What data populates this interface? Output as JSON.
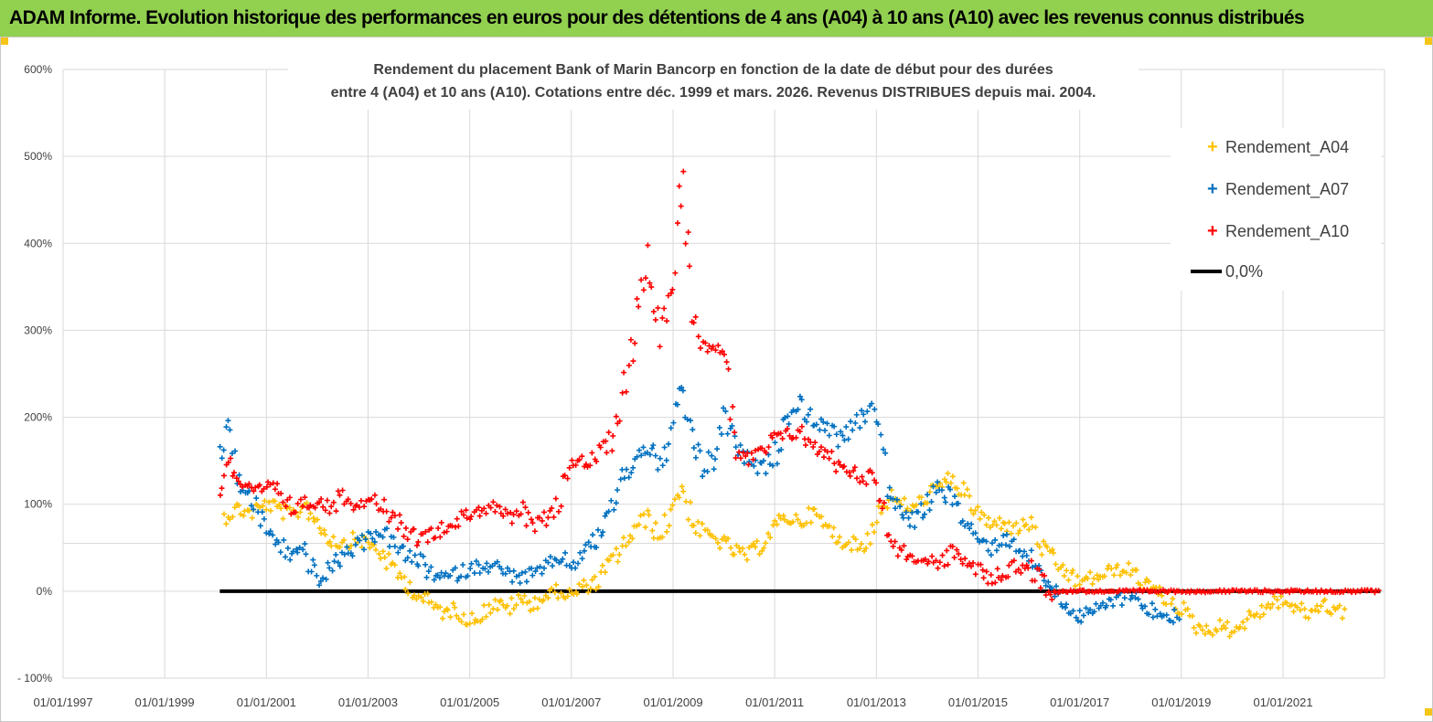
{
  "banner": {
    "title": "ADAM Informe. Evolution historique des performances en euros pour des détentions de 4 ans (A04) à 10 ans (A10) avec les revenus connus distribués",
    "background": "#92d050"
  },
  "chart_data": {
    "type": "scatter",
    "title_line1": "Rendement du placement Bank of Marin Bancorp en fonction de la date de début pour des durées",
    "title_line2": "entre 4 (A04) et 10 ans (A10).  Cotations entre déc. 1999 et mars. 2026. Revenus DISTRIBUES depuis mai. 2004.",
    "x_axis": {
      "type": "date",
      "range": [
        "1997-01-01",
        "2022-12-31"
      ],
      "tick_labels": [
        "01/01/1997",
        "01/01/1999",
        "01/01/2001",
        "01/01/2003",
        "01/01/2005",
        "01/01/2007",
        "01/01/2009",
        "01/01/2011",
        "01/01/2013",
        "01/01/2015",
        "01/01/2017",
        "01/01/2019",
        "01/01/2021"
      ]
    },
    "y_axis": {
      "range": [
        -100,
        600
      ],
      "tick_values": [
        -100,
        0,
        100,
        200,
        300,
        400,
        500,
        600
      ],
      "tick_labels": [
        "- 100%",
        "0%",
        "100%",
        "200%",
        "300%",
        "400%",
        "500%",
        "600%"
      ],
      "extra_gridline": 55
    },
    "grid": true,
    "legend_position": "top-right",
    "series": [
      {
        "name": "Rendement_A04",
        "color": "#ffc000",
        "marker": "plus",
        "points": [
          [
            "2000-03-01",
            85
          ],
          [
            "2000-06-01",
            95
          ],
          [
            "2000-09-01",
            90
          ],
          [
            "2001-01-01",
            100
          ],
          [
            "2001-04-01",
            95
          ],
          [
            "2001-07-01",
            85
          ],
          [
            "2001-10-01",
            100
          ],
          [
            "2002-01-01",
            80
          ],
          [
            "2002-04-01",
            60
          ],
          [
            "2002-07-01",
            55
          ],
          [
            "2002-10-01",
            60
          ],
          [
            "2003-01-01",
            55
          ],
          [
            "2003-04-01",
            45
          ],
          [
            "2003-07-01",
            25
          ],
          [
            "2003-10-01",
            10
          ],
          [
            "2004-01-01",
            -5
          ],
          [
            "2004-04-01",
            -15
          ],
          [
            "2004-07-01",
            -25
          ],
          [
            "2004-10-01",
            -20
          ],
          [
            "2005-01-01",
            -35
          ],
          [
            "2005-04-01",
            -25
          ],
          [
            "2005-07-01",
            -15
          ],
          [
            "2005-10-01",
            -20
          ],
          [
            "2006-01-01",
            -10
          ],
          [
            "2006-04-01",
            -15
          ],
          [
            "2006-07-01",
            -5
          ],
          [
            "2006-10-01",
            0
          ],
          [
            "2007-01-01",
            -5
          ],
          [
            "2007-04-01",
            5
          ],
          [
            "2007-07-01",
            10
          ],
          [
            "2007-10-01",
            30
          ],
          [
            "2008-01-01",
            50
          ],
          [
            "2008-04-01",
            70
          ],
          [
            "2008-07-01",
            85
          ],
          [
            "2008-10-01",
            60
          ],
          [
            "2009-01-01",
            100
          ],
          [
            "2009-03-01",
            120
          ],
          [
            "2009-06-01",
            75
          ],
          [
            "2009-09-01",
            65
          ],
          [
            "2010-01-01",
            55
          ],
          [
            "2010-04-01",
            45
          ],
          [
            "2010-07-01",
            40
          ],
          [
            "2010-10-01",
            55
          ],
          [
            "2011-01-01",
            75
          ],
          [
            "2011-04-01",
            85
          ],
          [
            "2011-07-01",
            80
          ],
          [
            "2011-10-01",
            90
          ],
          [
            "2012-01-01",
            75
          ],
          [
            "2012-04-01",
            60
          ],
          [
            "2012-07-01",
            55
          ],
          [
            "2012-10-01",
            50
          ],
          [
            "2013-01-01",
            85
          ],
          [
            "2013-04-01",
            110
          ],
          [
            "2013-07-01",
            100
          ],
          [
            "2013-10-01",
            95
          ],
          [
            "2014-01-01",
            110
          ],
          [
            "2014-04-01",
            120
          ],
          [
            "2014-07-01",
            130
          ],
          [
            "2014-10-01",
            110
          ],
          [
            "2015-01-01",
            90
          ],
          [
            "2015-04-01",
            75
          ],
          [
            "2015-07-01",
            80
          ],
          [
            "2015-10-01",
            70
          ],
          [
            "2016-01-01",
            80
          ],
          [
            "2016-04-01",
            50
          ],
          [
            "2016-07-01",
            35
          ],
          [
            "2016-10-01",
            20
          ],
          [
            "2017-01-01",
            10
          ],
          [
            "2017-04-01",
            15
          ],
          [
            "2017-07-01",
            20
          ],
          [
            "2017-10-01",
            25
          ],
          [
            "2018-01-01",
            25
          ],
          [
            "2018-04-01",
            10
          ],
          [
            "2018-07-01",
            0
          ],
          [
            "2018-10-01",
            -10
          ],
          [
            "2019-01-01",
            -20
          ],
          [
            "2019-04-01",
            -40
          ],
          [
            "2019-07-01",
            -45
          ],
          [
            "2019-10-01",
            -40
          ],
          [
            "2020-01-01",
            -45
          ],
          [
            "2020-04-01",
            -35
          ],
          [
            "2020-07-01",
            -25
          ],
          [
            "2020-10-01",
            -15
          ],
          [
            "2021-01-01",
            -10
          ],
          [
            "2021-04-01",
            -20
          ],
          [
            "2021-07-01",
            -25
          ],
          [
            "2021-10-01",
            -15
          ],
          [
            "2022-01-01",
            -20
          ],
          [
            "2022-04-01",
            -25
          ]
        ]
      },
      {
        "name": "Rendement_A07",
        "color": "#0070c0",
        "marker": "plus",
        "points": [
          [
            "2000-02-01",
            155
          ],
          [
            "2000-04-01",
            185
          ],
          [
            "2000-07-01",
            120
          ],
          [
            "2000-10-01",
            100
          ],
          [
            "2001-01-01",
            70
          ],
          [
            "2001-04-01",
            55
          ],
          [
            "2001-07-01",
            40
          ],
          [
            "2001-10-01",
            50
          ],
          [
            "2002-01-01",
            10
          ],
          [
            "2002-04-01",
            25
          ],
          [
            "2002-07-01",
            40
          ],
          [
            "2002-10-01",
            50
          ],
          [
            "2003-01-01",
            60
          ],
          [
            "2003-04-01",
            70
          ],
          [
            "2003-07-01",
            55
          ],
          [
            "2003-10-01",
            40
          ],
          [
            "2004-01-01",
            35
          ],
          [
            "2004-04-01",
            20
          ],
          [
            "2004-07-01",
            15
          ],
          [
            "2004-10-01",
            20
          ],
          [
            "2005-01-01",
            25
          ],
          [
            "2005-04-01",
            30
          ],
          [
            "2005-07-01",
            28
          ],
          [
            "2005-10-01",
            20
          ],
          [
            "2006-01-01",
            15
          ],
          [
            "2006-04-01",
            20
          ],
          [
            "2006-07-01",
            25
          ],
          [
            "2006-10-01",
            40
          ],
          [
            "2007-01-01",
            30
          ],
          [
            "2007-04-01",
            45
          ],
          [
            "2007-07-01",
            60
          ],
          [
            "2007-10-01",
            90
          ],
          [
            "2008-01-01",
            130
          ],
          [
            "2008-04-01",
            150
          ],
          [
            "2008-07-01",
            170
          ],
          [
            "2008-10-01",
            140
          ],
          [
            "2009-01-01",
            190
          ],
          [
            "2009-03-01",
            230
          ],
          [
            "2009-06-01",
            170
          ],
          [
            "2009-09-01",
            130
          ],
          [
            "2010-01-01",
            200
          ],
          [
            "2010-04-01",
            170
          ],
          [
            "2010-07-01",
            145
          ],
          [
            "2010-10-01",
            140
          ],
          [
            "2011-01-01",
            155
          ],
          [
            "2011-04-01",
            200
          ],
          [
            "2011-07-01",
            215
          ],
          [
            "2011-10-01",
            195
          ],
          [
            "2012-01-01",
            190
          ],
          [
            "2012-04-01",
            175
          ],
          [
            "2012-07-01",
            185
          ],
          [
            "2012-10-01",
            200
          ],
          [
            "2013-01-01",
            220
          ],
          [
            "2013-04-01",
            110
          ],
          [
            "2013-07-01",
            90
          ],
          [
            "2013-10-01",
            80
          ],
          [
            "2014-01-01",
            100
          ],
          [
            "2014-04-01",
            120
          ],
          [
            "2014-07-01",
            105
          ],
          [
            "2014-10-01",
            80
          ],
          [
            "2015-01-01",
            60
          ],
          [
            "2015-04-01",
            50
          ],
          [
            "2015-07-01",
            60
          ],
          [
            "2015-10-01",
            55
          ],
          [
            "2016-01-01",
            40
          ],
          [
            "2016-04-01",
            20
          ],
          [
            "2016-07-01",
            0
          ],
          [
            "2016-10-01",
            -15
          ],
          [
            "2017-01-01",
            -30
          ],
          [
            "2017-04-01",
            -25
          ],
          [
            "2017-07-01",
            -15
          ],
          [
            "2017-10-01",
            -10
          ],
          [
            "2018-01-01",
            0
          ],
          [
            "2018-04-01",
            -15
          ],
          [
            "2018-07-01",
            -25
          ],
          [
            "2018-10-01",
            -30
          ],
          [
            "2019-01-01",
            -25
          ]
        ]
      },
      {
        "name": "Rendement_A10",
        "color": "#ff0000",
        "marker": "plus",
        "points": [
          [
            "2000-02-01",
            115
          ],
          [
            "2000-04-01",
            150
          ],
          [
            "2000-07-01",
            125
          ],
          [
            "2000-10-01",
            110
          ],
          [
            "2001-01-01",
            120
          ],
          [
            "2001-04-01",
            115
          ],
          [
            "2001-07-01",
            95
          ],
          [
            "2001-10-01",
            100
          ],
          [
            "2002-01-01",
            105
          ],
          [
            "2002-04-01",
            95
          ],
          [
            "2002-07-01",
            110
          ],
          [
            "2002-10-01",
            100
          ],
          [
            "2003-01-01",
            110
          ],
          [
            "2003-04-01",
            100
          ],
          [
            "2003-07-01",
            85
          ],
          [
            "2003-10-01",
            70
          ],
          [
            "2004-01-01",
            60
          ],
          [
            "2004-04-01",
            65
          ],
          [
            "2004-07-01",
            75
          ],
          [
            "2004-10-01",
            80
          ],
          [
            "2005-01-01",
            90
          ],
          [
            "2005-04-01",
            95
          ],
          [
            "2005-07-01",
            100
          ],
          [
            "2005-10-01",
            80
          ],
          [
            "2006-01-01",
            95
          ],
          [
            "2006-04-01",
            70
          ],
          [
            "2006-07-01",
            85
          ],
          [
            "2006-10-01",
            100
          ],
          [
            "2007-01-01",
            155
          ],
          [
            "2007-04-01",
            145
          ],
          [
            "2007-07-01",
            155
          ],
          [
            "2007-10-01",
            170
          ],
          [
            "2008-01-01",
            220
          ],
          [
            "2008-04-01",
            300
          ],
          [
            "2008-07-01",
            390
          ],
          [
            "2008-10-01",
            300
          ],
          [
            "2009-01-01",
            360
          ],
          [
            "2009-03-01",
            480
          ],
          [
            "2009-06-01",
            320
          ],
          [
            "2009-09-01",
            270
          ],
          [
            "2010-01-01",
            285
          ],
          [
            "2010-04-01",
            160
          ],
          [
            "2010-07-01",
            150
          ],
          [
            "2010-10-01",
            160
          ],
          [
            "2011-01-01",
            175
          ],
          [
            "2011-04-01",
            180
          ],
          [
            "2011-07-01",
            185
          ],
          [
            "2011-10-01",
            165
          ],
          [
            "2012-01-01",
            160
          ],
          [
            "2012-04-01",
            145
          ],
          [
            "2012-07-01",
            140
          ],
          [
            "2012-10-01",
            130
          ],
          [
            "2013-01-01",
            135
          ],
          [
            "2013-04-01",
            60
          ],
          [
            "2013-07-01",
            45
          ],
          [
            "2013-10-01",
            40
          ],
          [
            "2014-01-01",
            35
          ],
          [
            "2014-04-01",
            30
          ],
          [
            "2014-07-01",
            45
          ],
          [
            "2014-10-01",
            35
          ],
          [
            "2015-01-01",
            25
          ],
          [
            "2015-04-01",
            15
          ],
          [
            "2015-07-01",
            20
          ],
          [
            "2015-10-01",
            30
          ],
          [
            "2016-01-01",
            25
          ],
          [
            "2016-07-01",
            0
          ],
          [
            "2017-01-01",
            0
          ],
          [
            "2018-01-01",
            0
          ],
          [
            "2019-01-01",
            0
          ],
          [
            "2020-01-01",
            0
          ],
          [
            "2021-01-01",
            0
          ],
          [
            "2022-01-01",
            0
          ],
          [
            "2022-12-01",
            0
          ]
        ]
      },
      {
        "name": "0,0%",
        "color": "#000000",
        "marker": "line",
        "points": [
          [
            "2000-02-01",
            0
          ],
          [
            "2022-12-01",
            0
          ]
        ]
      }
    ]
  }
}
